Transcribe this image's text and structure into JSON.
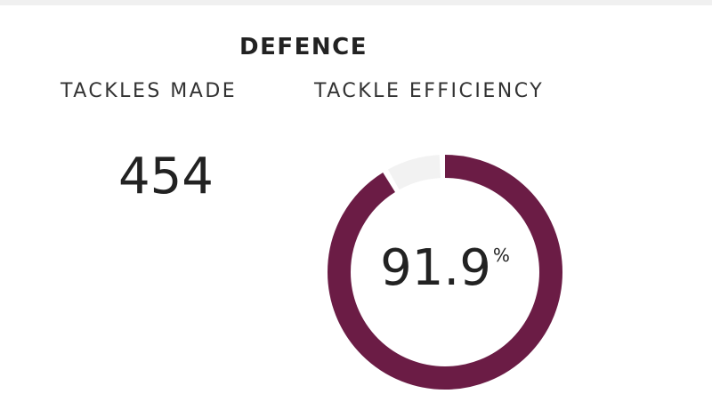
{
  "section": {
    "title": "DEFENCE"
  },
  "tackles_made": {
    "label": "TACKLES MADE",
    "value": "454"
  },
  "tackle_efficiency": {
    "label": "TACKLE EFFICIENCY",
    "value": "91.9",
    "unit": "%",
    "percent": 91.9
  },
  "colors": {
    "accent": "#6b1c45",
    "track": "#f2f2f2",
    "top_bar": "#f0f0f0"
  }
}
